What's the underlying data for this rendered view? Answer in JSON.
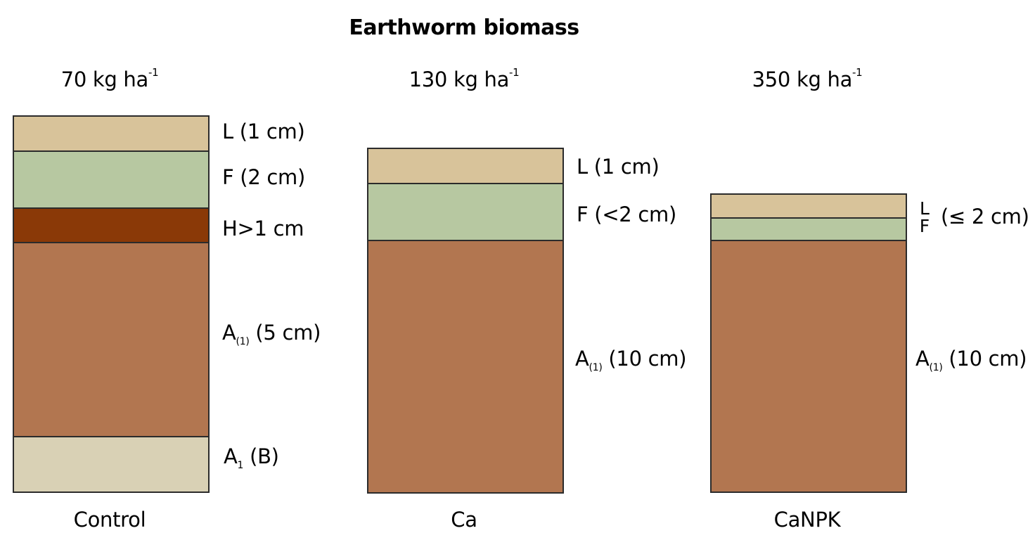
{
  "title": "Earthworm biomass",
  "colors": {
    "L": "#d8c39a",
    "F": "#b7c8a1",
    "H": "#8a3907",
    "A1_horizon": "#b27650",
    "A1_B": "#d9d1b5",
    "border": "#2b2b2b"
  },
  "columns": [
    {
      "treatment": "Control",
      "biomass": "70 kg ha",
      "biomass_exp": "-1",
      "labels": {
        "L": "L (1 cm)",
        "F": "F (2 cm)",
        "H": "H>1 cm",
        "A_main": "A",
        "A_sub": "(1)",
        "A_rest": " (5 cm)",
        "B_main": "A",
        "B_sub": "1",
        "B_rest": " (B)"
      }
    },
    {
      "treatment": "Ca",
      "biomass": "130 kg ha",
      "biomass_exp": "-1",
      "labels": {
        "L": "L (1 cm)",
        "F": "F (<2 cm)",
        "A_main": "A",
        "A_sub": "(1)",
        "A_rest": " (10 cm)"
      }
    },
    {
      "treatment": "CaNPK",
      "biomass": "350 kg ha",
      "biomass_exp": "-1",
      "labels": {
        "L": "L",
        "F": "F",
        "LF_rest": "(≤ 2 cm)",
        "A_main": "A",
        "A_sub": "(1)",
        "A_rest": " (10 cm)"
      }
    }
  ]
}
